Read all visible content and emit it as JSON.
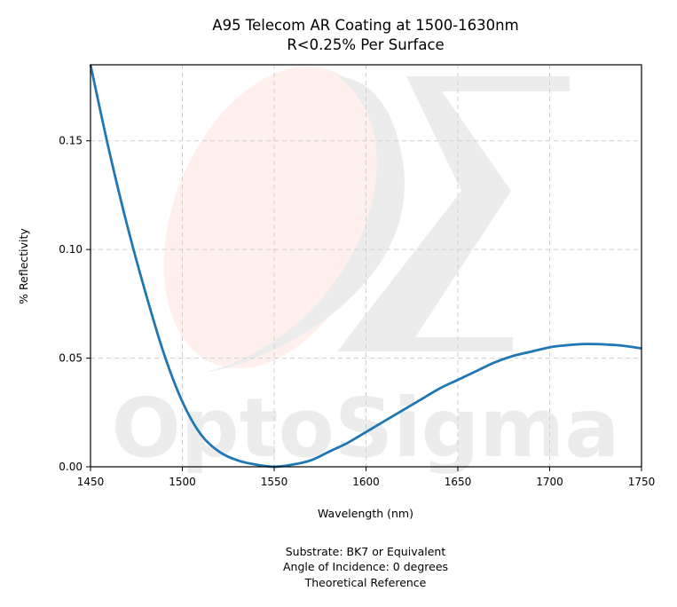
{
  "chart_data": {
    "type": "line",
    "title_lines": [
      "A95 Telecom AR Coating at 1500-1630nm",
      "R<0.25% Per Surface"
    ],
    "xlabel": "Wavelength (nm)",
    "ylabel": "% Reflectivity",
    "xlim": [
      1450,
      1750
    ],
    "ylim": [
      0,
      0.185
    ],
    "xticks": [
      "1450",
      "1500",
      "1550",
      "1600",
      "1650",
      "1700",
      "1750"
    ],
    "yticks": [
      "0.00",
      "0.05",
      "0.10",
      "0.15"
    ],
    "grid": true,
    "line_color": "#1f77b4",
    "series": [
      {
        "x": [
          1450,
          1460,
          1470,
          1480,
          1490,
          1500,
          1510,
          1520,
          1530,
          1540,
          1550,
          1560,
          1570,
          1580,
          1590,
          1600,
          1610,
          1620,
          1630,
          1640,
          1650,
          1660,
          1670,
          1680,
          1690,
          1700,
          1710,
          1720,
          1730,
          1740,
          1750
        ],
        "y": [
          0.185,
          0.146,
          0.111,
          0.08,
          0.052,
          0.03,
          0.015,
          0.007,
          0.003,
          0.001,
          0.0,
          0.001,
          0.003,
          0.007,
          0.011,
          0.016,
          0.021,
          0.026,
          0.031,
          0.036,
          0.04,
          0.044,
          0.048,
          0.051,
          0.053,
          0.055,
          0.056,
          0.0565,
          0.0563,
          0.0557,
          0.0545
        ]
      }
    ],
    "footer_lines": [
      "Substrate: BK7 or Equivalent",
      "Angle of Incidence: 0 degrees",
      "Theoretical Reference"
    ],
    "watermark": {
      "text": "OptoSigma",
      "symbol": "Σ",
      "color": "#ececec",
      "accent_color": "#fff0ee"
    }
  }
}
